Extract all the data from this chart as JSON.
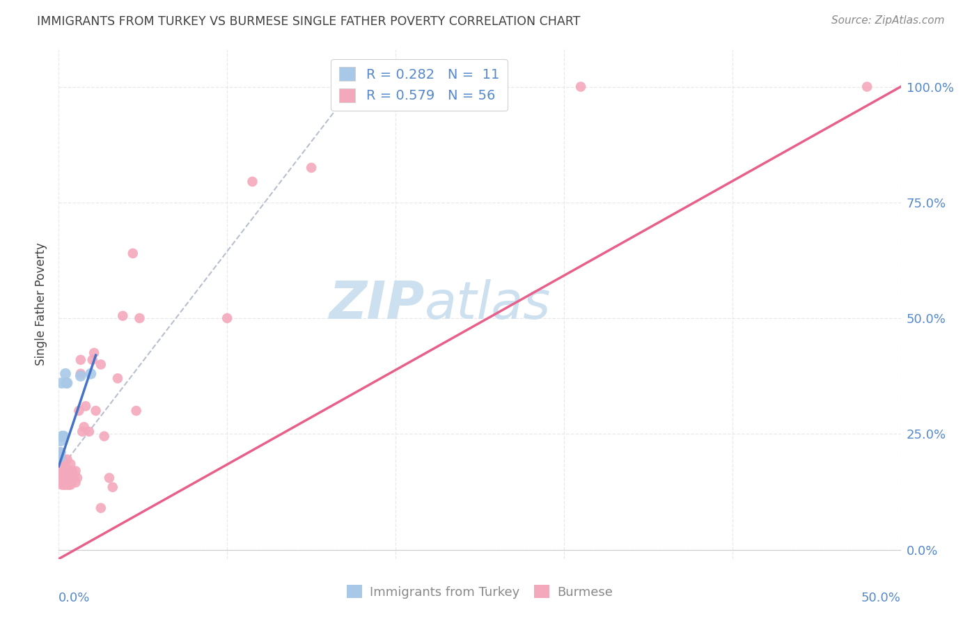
{
  "title": "IMMIGRANTS FROM TURKEY VS BURMESE SINGLE FATHER POVERTY CORRELATION CHART",
  "source": "Source: ZipAtlas.com",
  "ylabel": "Single Father Poverty",
  "ylabel_right_ticks": [
    "0.0%",
    "25.0%",
    "50.0%",
    "75.0%",
    "100.0%"
  ],
  "legend_xlabel": "Immigrants from Turkey",
  "legend_ylabel": "Burmese",
  "turkey_color": "#a8c8e8",
  "burmese_color": "#f4a8bc",
  "turkey_line_color": "#4472c4",
  "burmese_line_color": "#e8608a",
  "dashed_line_color": "#b0b8c8",
  "watermark_zip": "ZIP",
  "watermark_atlas": "atlas",
  "watermark_color": "#cce0f0",
  "background_color": "#ffffff",
  "grid_color": "#e8e8e8",
  "title_color": "#404040",
  "axis_label_color": "#5588cc",
  "source_color": "#888888",
  "xlim": [
    0.0,
    0.5
  ],
  "ylim": [
    -0.02,
    1.08
  ],
  "turkey_x": [
    0.0008,
    0.001,
    0.0012,
    0.0018,
    0.002,
    0.003,
    0.004,
    0.0045,
    0.005,
    0.013,
    0.019
  ],
  "turkey_y": [
    0.2,
    0.21,
    0.235,
    0.36,
    0.245,
    0.245,
    0.38,
    0.36,
    0.36,
    0.375,
    0.38
  ],
  "burmese_x": [
    0.0005,
    0.0007,
    0.001,
    0.001,
    0.0012,
    0.0015,
    0.002,
    0.002,
    0.0022,
    0.0025,
    0.003,
    0.003,
    0.003,
    0.003,
    0.004,
    0.004,
    0.004,
    0.005,
    0.005,
    0.005,
    0.006,
    0.006,
    0.007,
    0.007,
    0.007,
    0.008,
    0.008,
    0.009,
    0.01,
    0.01,
    0.011,
    0.012,
    0.013,
    0.013,
    0.014,
    0.015,
    0.016,
    0.018,
    0.02,
    0.021,
    0.022,
    0.025,
    0.025,
    0.027,
    0.03,
    0.032,
    0.035,
    0.038,
    0.044,
    0.046,
    0.048,
    0.1,
    0.115,
    0.15,
    0.31,
    0.48
  ],
  "burmese_y": [
    0.19,
    0.2,
    0.195,
    0.21,
    0.175,
    0.18,
    0.14,
    0.155,
    0.17,
    0.195,
    0.14,
    0.155,
    0.165,
    0.185,
    0.14,
    0.155,
    0.175,
    0.14,
    0.175,
    0.195,
    0.14,
    0.165,
    0.14,
    0.16,
    0.185,
    0.145,
    0.17,
    0.16,
    0.145,
    0.17,
    0.155,
    0.3,
    0.38,
    0.41,
    0.255,
    0.265,
    0.31,
    0.255,
    0.41,
    0.425,
    0.3,
    0.4,
    0.09,
    0.245,
    0.155,
    0.135,
    0.37,
    0.505,
    0.64,
    0.3,
    0.5,
    0.5,
    0.795,
    0.825,
    1.0,
    1.0
  ],
  "turkey_R": 0.282,
  "turkey_N": 11,
  "burmese_R": 0.579,
  "burmese_N": 56,
  "burmese_line_x": [
    0.0,
    0.5
  ],
  "burmese_line_y": [
    -0.02,
    1.0
  ],
  "turkey_line_x": [
    0.0,
    0.022
  ],
  "turkey_line_y": [
    0.18,
    0.42
  ],
  "dashed_line_x": [
    0.0,
    0.175
  ],
  "dashed_line_y": [
    0.17,
    1.0
  ]
}
